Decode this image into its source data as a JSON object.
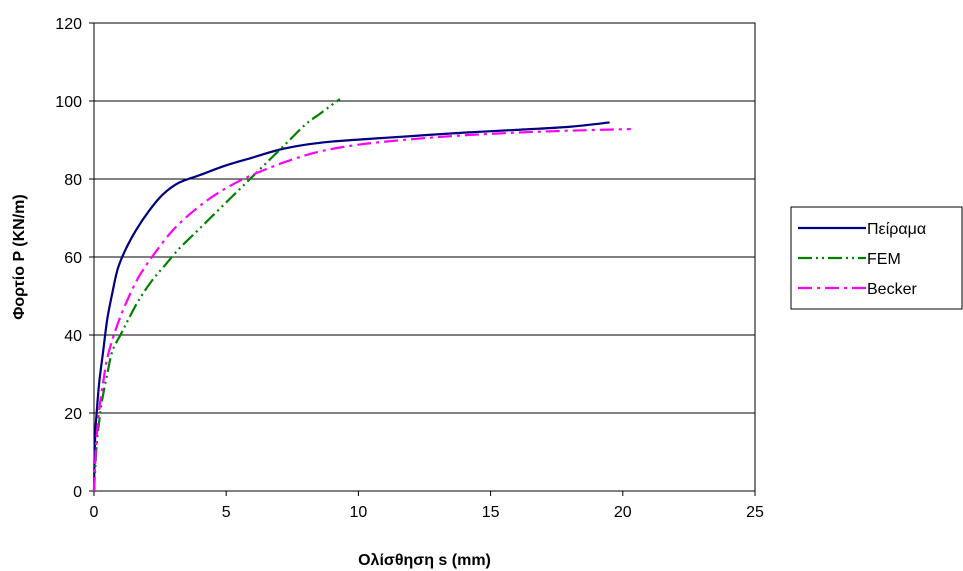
{
  "chart_data": {
    "type": "line",
    "title": "",
    "xlabel": "Ολίσθηση s (mm)",
    "ylabel": "Φορτίο P (KN/m)",
    "xlim": [
      0,
      25
    ],
    "ylim": [
      0,
      120
    ],
    "x_ticks": [
      0,
      5,
      10,
      15,
      20,
      25
    ],
    "y_ticks": [
      0,
      20,
      40,
      60,
      80,
      100,
      120
    ],
    "grid": "horizontal",
    "legend_position": "right",
    "series": [
      {
        "name": "Πείραμα",
        "color": "#000080",
        "dash": "solid",
        "points": [
          [
            0,
            0
          ],
          [
            0.02,
            8
          ],
          [
            0.05,
            15
          ],
          [
            0.1,
            20
          ],
          [
            0.2,
            28
          ],
          [
            0.35,
            36
          ],
          [
            0.5,
            44
          ],
          [
            0.7,
            51
          ],
          [
            0.9,
            57
          ],
          [
            1.2,
            62
          ],
          [
            1.6,
            67
          ],
          [
            2.1,
            72
          ],
          [
            2.6,
            76
          ],
          [
            3.2,
            79
          ],
          [
            4,
            81
          ],
          [
            5,
            83.5
          ],
          [
            6,
            85.5
          ],
          [
            7,
            87.5
          ],
          [
            8,
            88.8
          ],
          [
            9,
            89.6
          ],
          [
            10,
            90.1
          ],
          [
            12,
            91
          ],
          [
            14,
            91.9
          ],
          [
            16,
            92.6
          ],
          [
            18,
            93.4
          ],
          [
            19.5,
            94.5
          ]
        ]
      },
      {
        "name": "FEM",
        "color": "#008000",
        "dash": "dash-dot-dot",
        "points": [
          [
            0,
            0
          ],
          [
            0.05,
            6
          ],
          [
            0.1,
            12
          ],
          [
            0.2,
            18
          ],
          [
            0.3,
            23
          ],
          [
            0.5,
            30
          ],
          [
            0.7,
            36
          ],
          [
            1,
            40
          ],
          [
            1.3,
            44
          ],
          [
            1.7,
            49
          ],
          [
            2.2,
            54
          ],
          [
            2.7,
            58
          ],
          [
            3.2,
            62
          ],
          [
            3.8,
            66
          ],
          [
            4.4,
            70
          ],
          [
            5,
            74
          ],
          [
            5.6,
            78
          ],
          [
            6.2,
            82
          ],
          [
            6.8,
            86
          ],
          [
            7.4,
            90
          ],
          [
            8,
            94
          ],
          [
            8.6,
            97
          ],
          [
            9.3,
            100.5
          ]
        ]
      },
      {
        "name": "Becker",
        "color": "#FF00FF",
        "dash": "dash-dot",
        "points": [
          [
            0,
            0
          ],
          [
            0.05,
            8
          ],
          [
            0.1,
            14
          ],
          [
            0.2,
            21
          ],
          [
            0.35,
            28
          ],
          [
            0.5,
            34
          ],
          [
            0.8,
            41
          ],
          [
            1.2,
            48
          ],
          [
            1.7,
            55
          ],
          [
            2.3,
            61
          ],
          [
            3,
            67
          ],
          [
            3.8,
            72
          ],
          [
            4.6,
            76
          ],
          [
            5.5,
            79.5
          ],
          [
            6.5,
            82.5
          ],
          [
            7.5,
            85
          ],
          [
            8.5,
            87
          ],
          [
            10,
            88.8
          ],
          [
            12,
            90.2
          ],
          [
            14,
            91.2
          ],
          [
            16,
            91.9
          ],
          [
            18,
            92.4
          ],
          [
            20.3,
            92.8
          ]
        ]
      }
    ]
  }
}
